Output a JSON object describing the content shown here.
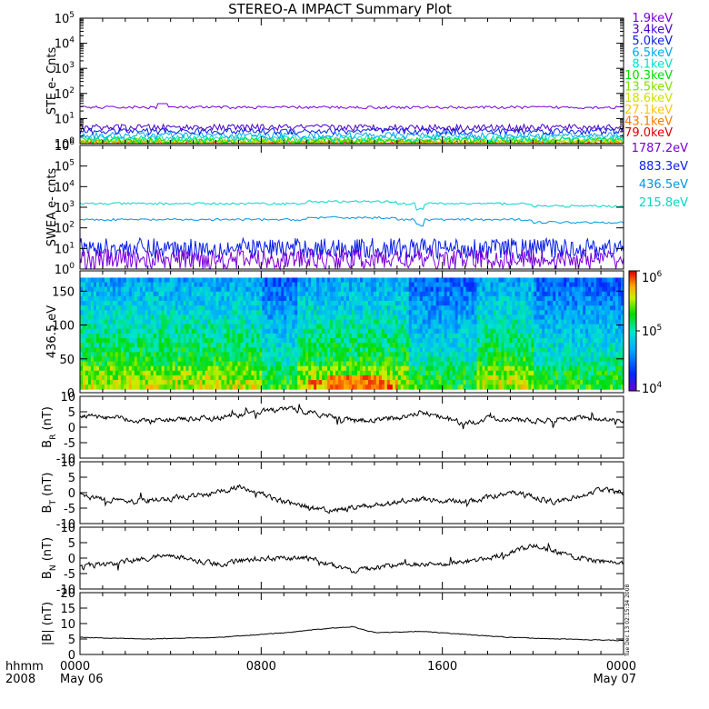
{
  "title": "STEREO-A IMPACT Summary Plot",
  "footer": {
    "left_top": "hhmm",
    "left_bottom": "2008",
    "x_ticks": [
      "0000",
      "0800",
      "1600",
      "0000"
    ],
    "x_dates": [
      "May 06",
      "",
      "",
      "May 07"
    ]
  },
  "stamp": "Tue Dec 13 02:15:34 2008",
  "colors": {
    "ste": [
      "#7a00d8",
      "#4b00c8",
      "#0a1ee6",
      "#00aaee",
      "#00e0c8",
      "#00dc00",
      "#7fe000",
      "#d0e000",
      "#ffc800",
      "#ff7800",
      "#e00000"
    ],
    "swea": [
      "#7a00d8",
      "#0a1ee6",
      "#0096e6",
      "#00d7c8"
    ]
  },
  "chart_data": [
    {
      "id": "ste",
      "type": "line",
      "ylabel": "STE e- Cnts",
      "yscale": "log",
      "ylim": [
        1,
        100000
      ],
      "y_ticks": [
        {
          "base": "10",
          "exp": "0"
        },
        {
          "base": "10",
          "exp": "1"
        },
        {
          "base": "10",
          "exp": "2"
        },
        {
          "base": "10",
          "exp": "3"
        },
        {
          "base": "10",
          "exp": "4"
        },
        {
          "base": "10",
          "exp": "5"
        }
      ],
      "series": [
        {
          "name": "1.9keV",
          "level": 28
        },
        {
          "name": "3.4keV",
          "level": 4.5
        },
        {
          "name": "5.0keV",
          "level": 3.2
        },
        {
          "name": "6.5keV",
          "level": 2.2
        },
        {
          "name": "8.1keV",
          "level": 1.7
        },
        {
          "name": "10.3keV",
          "level": 1.4
        },
        {
          "name": "13.5keV",
          "level": 1.25
        },
        {
          "name": "18.6keV",
          "level": 1.15
        },
        {
          "name": "27.1keV",
          "level": 1.1
        },
        {
          "name": "43.1keV",
          "level": 1.05
        },
        {
          "name": "79.0keV",
          "level": 1.02
        }
      ]
    },
    {
      "id": "swea",
      "type": "line",
      "ylabel": "SWEA e- cnts",
      "yscale": "log",
      "ylim": [
        1,
        1000000
      ],
      "y_ticks": [
        {
          "base": "10",
          "exp": "0"
        },
        {
          "base": "10",
          "exp": "1"
        },
        {
          "base": "10",
          "exp": "2"
        },
        {
          "base": "10",
          "exp": "3"
        },
        {
          "base": "10",
          "exp": "4"
        },
        {
          "base": "10",
          "exp": "5"
        },
        {
          "base": "10",
          "exp": "6"
        }
      ],
      "series": [
        {
          "name": "1787.2eV",
          "level": 3
        },
        {
          "name": "883.3eV",
          "level": 10
        },
        {
          "name": "436.5eV",
          "level": 250
        },
        {
          "name": "215.8eV",
          "level": 1500
        }
      ]
    },
    {
      "id": "spectrogram",
      "type": "heatmap",
      "ylabel": "436.5 eV",
      "ylim": [
        0,
        180
      ],
      "y_ticks": [
        "0",
        "50",
        "100",
        "150"
      ],
      "colorbar": {
        "scale": "log",
        "range": [
          10000,
          1000000
        ],
        "ticks": [
          {
            "base": "10",
            "exp": "4"
          },
          {
            "base": "10",
            "exp": "5"
          },
          {
            "base": "10",
            "exp": "6"
          }
        ]
      }
    },
    {
      "id": "br",
      "type": "line",
      "ylabel_main": "B",
      "ylabel_sub": "R",
      "ylabel_unit": " (nT)",
      "ylim": [
        -10,
        10
      ],
      "y_ticks": [
        "-10",
        "-5",
        "0",
        "5",
        "10"
      ],
      "trend_hours": [
        0,
        3,
        6,
        9,
        10,
        12,
        14,
        15,
        17,
        18,
        20,
        22,
        24
      ],
      "trend_values": [
        4,
        2,
        3,
        6,
        5,
        2,
        3,
        5,
        1,
        3,
        2,
        3,
        2
      ]
    },
    {
      "id": "bt",
      "type": "line",
      "ylabel_main": "B",
      "ylabel_sub": "T",
      "ylabel_unit": " (nT)",
      "ylim": [
        -10,
        10
      ],
      "y_ticks": [
        "-10",
        "-5",
        "0",
        "5",
        "10"
      ],
      "trend_hours": [
        0,
        2,
        4,
        6,
        7,
        9,
        11,
        13,
        15,
        17,
        19,
        21,
        23,
        24
      ],
      "trend_values": [
        -1,
        -3,
        -2,
        0,
        2,
        -3,
        -6,
        -4,
        -2,
        -3,
        0,
        -3,
        1,
        0
      ]
    },
    {
      "id": "bn",
      "type": "line",
      "ylabel_main": "B",
      "ylabel_sub": "N",
      "ylabel_unit": " (nT)",
      "ylim": [
        -10,
        10
      ],
      "y_ticks": [
        "-10",
        "-5",
        "0",
        "5",
        "10"
      ],
      "trend_hours": [
        0,
        2,
        4,
        6,
        8,
        10,
        11,
        12,
        14,
        16,
        18,
        19,
        20,
        22,
        24
      ],
      "trend_values": [
        -3,
        -1,
        1,
        -2,
        0,
        0,
        -2,
        -4,
        -2,
        -2,
        0,
        2,
        4,
        0,
        -2
      ]
    },
    {
      "id": "bmag",
      "type": "line",
      "ylabel_main": "|B|",
      "ylabel_sub": "",
      "ylabel_unit": " (nT)",
      "ylim": [
        0,
        20
      ],
      "y_ticks": [
        "0",
        "5",
        "10",
        "15",
        "20"
      ],
      "trend_hours": [
        0,
        3,
        6,
        9,
        11,
        12,
        13,
        15,
        17,
        19,
        21,
        24
      ],
      "trend_values": [
        5.5,
        5,
        5.5,
        7,
        8.5,
        9,
        7,
        7.5,
        6.5,
        5.5,
        5,
        4.5
      ]
    }
  ]
}
